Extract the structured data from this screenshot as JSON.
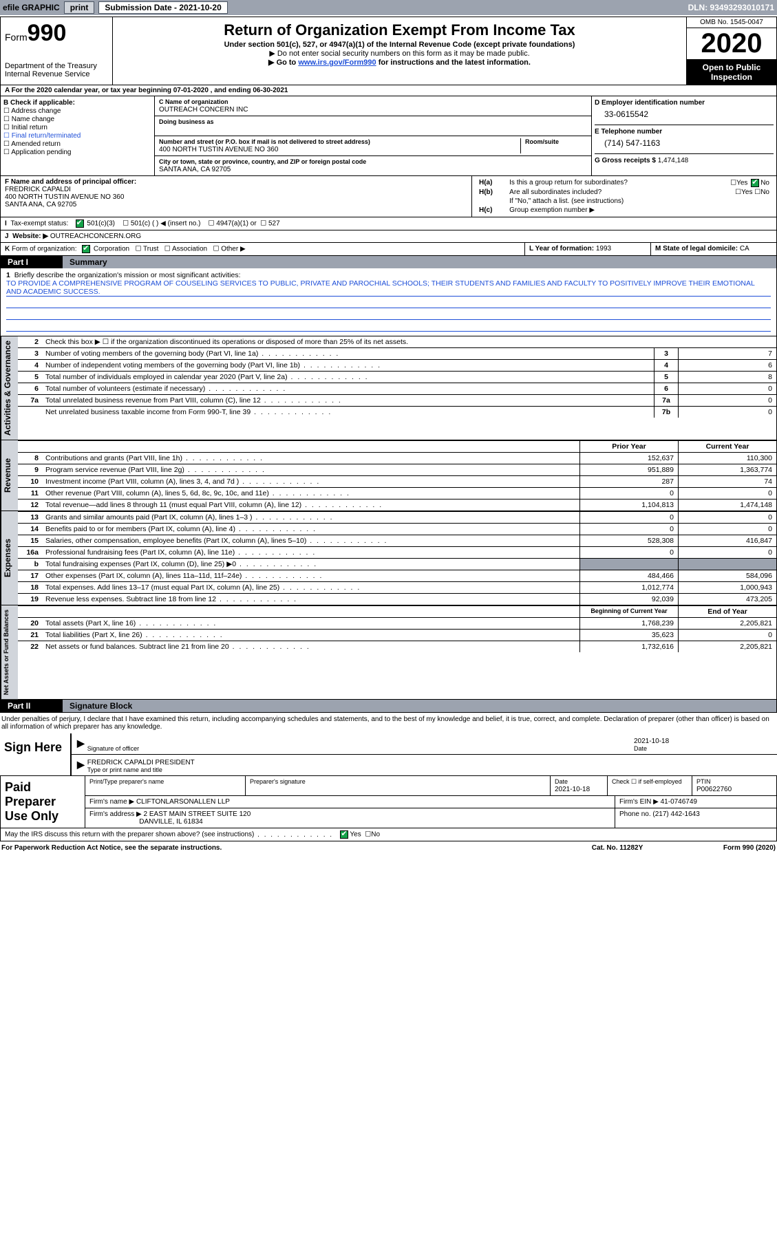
{
  "topbar": {
    "efile": "efile GRAPHIC",
    "print": "print",
    "submission": "Submission Date - 2021-10-20",
    "dln": "DLN: 93493293010171"
  },
  "header": {
    "form_word": "Form",
    "form_num": "990",
    "dept": "Department of the Treasury\nInternal Revenue Service",
    "title": "Return of Organization Exempt From Income Tax",
    "sub1": "Under section 501(c), 527, or 4947(a)(1) of the Internal Revenue Code (except private foundations)",
    "sub2": "▶ Do not enter social security numbers on this form as it may be made public.",
    "sub3_pre": "▶ Go to ",
    "sub3_link": "www.irs.gov/Form990",
    "sub3_post": " for instructions and the latest information.",
    "omb": "OMB No. 1545-0047",
    "year": "2020",
    "open": "Open to Public Inspection"
  },
  "period": "For the 2020 calendar year, or tax year beginning 07-01-2020    , and ending 06-30-2021",
  "B": {
    "label": "B Check if applicable:",
    "items": [
      "Address change",
      "Name change",
      "Initial return",
      "Final return/terminated",
      "Amended return",
      "Application pending"
    ]
  },
  "C": {
    "name_lbl": "C Name of organization",
    "name": "OUTREACH CONCERN INC",
    "dba_lbl": "Doing business as",
    "dba": "",
    "addr_lbl": "Number and street (or P.O. box if mail is not delivered to street address)",
    "room_lbl": "Room/suite",
    "addr": "400 NORTH TUSTIN AVENUE NO 360",
    "city_lbl": "City or town, state or province, country, and ZIP or foreign postal code",
    "city": "SANTA ANA, CA  92705"
  },
  "D": {
    "lbl": "D Employer identification number",
    "val": "33-0615542"
  },
  "E": {
    "lbl": "E Telephone number",
    "val": "(714) 547-1163"
  },
  "G": {
    "lbl": "G Gross receipts $",
    "val": "1,474,148"
  },
  "F": {
    "lbl": "F  Name and address of principal officer:",
    "name": "FREDRICK CAPALDI",
    "addr1": "400 NORTH TUSTIN AVENUE NO 360",
    "addr2": "SANTA ANA, CA  92705"
  },
  "H": {
    "a": "Is this a group return for subordinates?",
    "b": "Are all subordinates included?",
    "b_note": "If \"No,\" attach a list. (see instructions)",
    "c": "Group exemption number ▶",
    "yes": "Yes",
    "no": "No"
  },
  "I": {
    "lbl": "Tax-exempt status:",
    "c3": "501(c)(3)",
    "c": "501(c) (  ) ◀ (insert no.)",
    "a1": "4947(a)(1) or",
    "s527": "527"
  },
  "J": {
    "lbl": "Website: ▶",
    "val": "OUTREACHCONCERN.ORG"
  },
  "K": {
    "lbl": "Form of organization:",
    "corp": "Corporation",
    "trust": "Trust",
    "assoc": "Association",
    "other": "Other ▶"
  },
  "L": {
    "lbl": "L Year of formation:",
    "val": "1993"
  },
  "M": {
    "lbl": "M State of legal domicile:",
    "val": "CA"
  },
  "parts": {
    "p1": "Part I",
    "p1t": "Summary",
    "p2": "Part II",
    "p2t": "Signature Block"
  },
  "summary": {
    "l1": "Briefly describe the organization's mission or most significant activities:",
    "mission": "TO PROVIDE A COMPREHENSIVE PROGRAM OF COUSELING SERVICES TO PUBLIC, PRIVATE AND PAROCHIAL SCHOOLS; THEIR STUDENTS AND FAMILIES AND FACULTY TO POSITIVELY IMPROVE THEIR EMOTIONAL AND ACADEMIC SUCCESS.",
    "l2": "Check this box ▶ ☐  if the organization discontinued its operations or disposed of more than 25% of its net assets.",
    "rows_gov": [
      {
        "n": "3",
        "d": "Number of voting members of the governing body (Part VI, line 1a)",
        "box": "3",
        "v": "7"
      },
      {
        "n": "4",
        "d": "Number of independent voting members of the governing body (Part VI, line 1b)",
        "box": "4",
        "v": "6"
      },
      {
        "n": "5",
        "d": "Total number of individuals employed in calendar year 2020 (Part V, line 2a)",
        "box": "5",
        "v": "8"
      },
      {
        "n": "6",
        "d": "Total number of volunteers (estimate if necessary)",
        "box": "6",
        "v": "0"
      },
      {
        "n": "7a",
        "d": "Total unrelated business revenue from Part VIII, column (C), line 12",
        "box": "7a",
        "v": "0"
      },
      {
        "n": "",
        "d": "Net unrelated business taxable income from Form 990-T, line 39",
        "box": "7b",
        "v": "0"
      }
    ],
    "col_prior": "Prior Year",
    "col_curr": "Current Year",
    "rev": [
      {
        "n": "8",
        "d": "Contributions and grants (Part VIII, line 1h)",
        "p": "152,637",
        "c": "110,300"
      },
      {
        "n": "9",
        "d": "Program service revenue (Part VIII, line 2g)",
        "p": "951,889",
        "c": "1,363,774"
      },
      {
        "n": "10",
        "d": "Investment income (Part VIII, column (A), lines 3, 4, and 7d )",
        "p": "287",
        "c": "74"
      },
      {
        "n": "11",
        "d": "Other revenue (Part VIII, column (A), lines 5, 6d, 8c, 9c, 10c, and 11e)",
        "p": "0",
        "c": "0"
      },
      {
        "n": "12",
        "d": "Total revenue—add lines 8 through 11 (must equal Part VIII, column (A), line 12)",
        "p": "1,104,813",
        "c": "1,474,148"
      }
    ],
    "exp": [
      {
        "n": "13",
        "d": "Grants and similar amounts paid (Part IX, column (A), lines 1–3 )",
        "p": "0",
        "c": "0"
      },
      {
        "n": "14",
        "d": "Benefits paid to or for members (Part IX, column (A), line 4)",
        "p": "0",
        "c": "0"
      },
      {
        "n": "15",
        "d": "Salaries, other compensation, employee benefits (Part IX, column (A), lines 5–10)",
        "p": "528,308",
        "c": "416,847"
      },
      {
        "n": "16a",
        "d": "Professional fundraising fees (Part IX, column (A), line 11e)",
        "p": "0",
        "c": "0"
      },
      {
        "n": "b",
        "d": "Total fundraising expenses (Part IX, column (D), line 25) ▶0",
        "p": "",
        "c": "",
        "grey": true
      },
      {
        "n": "17",
        "d": "Other expenses (Part IX, column (A), lines 11a–11d, 11f–24e)",
        "p": "484,466",
        "c": "584,096"
      },
      {
        "n": "18",
        "d": "Total expenses. Add lines 13–17 (must equal Part IX, column (A), line 25)",
        "p": "1,012,774",
        "c": "1,000,943"
      },
      {
        "n": "19",
        "d": "Revenue less expenses. Subtract line 18 from line 12",
        "p": "92,039",
        "c": "473,205"
      }
    ],
    "col_beg": "Beginning of Current Year",
    "col_end": "End of Year",
    "net": [
      {
        "n": "20",
        "d": "Total assets (Part X, line 16)",
        "p": "1,768,239",
        "c": "2,205,821"
      },
      {
        "n": "21",
        "d": "Total liabilities (Part X, line 26)",
        "p": "35,623",
        "c": "0"
      },
      {
        "n": "22",
        "d": "Net assets or fund balances. Subtract line 21 from line 20",
        "p": "1,732,616",
        "c": "2,205,821"
      }
    ],
    "vlabels": {
      "gov": "Activities & Governance",
      "rev": "Revenue",
      "exp": "Expenses",
      "net": "Net Assets or Fund Balances"
    }
  },
  "penalty": "Under penalties of perjury, I declare that I have examined this return, including accompanying schedules and statements, and to the best of my knowledge and belief, it is true, correct, and complete. Declaration of preparer (other than officer) is based on all information of which preparer has any knowledge.",
  "sign": {
    "here": "Sign Here",
    "sig_officer": "Signature of officer",
    "date": "Date",
    "date_v": "2021-10-18",
    "name": "FREDRICK CAPALDI PRESIDENT",
    "type": "Type or print name and title"
  },
  "prep": {
    "left": "Paid Preparer Use Only",
    "r1": {
      "a": "Print/Type preparer's name",
      "b": "Preparer's signature",
      "c": "Date",
      "cv": "2021-10-18",
      "d": "Check ☐ if self-employed",
      "e": "PTIN",
      "ev": "P00622760"
    },
    "r2": {
      "a": "Firm's name    ▶",
      "av": "CLIFTONLARSONALLEN LLP",
      "b": "Firm's EIN ▶",
      "bv": "41-0746749"
    },
    "r3": {
      "a": "Firm's address ▶",
      "av": "2 EAST MAIN STREET SUITE 120",
      "av2": "DANVILLE, IL  61834",
      "b": "Phone no.",
      "bv": "(217) 442-1643"
    }
  },
  "discuss": {
    "q": "May the IRS discuss this return with the preparer shown above? (see instructions)",
    "yes": "Yes",
    "no": "No"
  },
  "footer": {
    "a": "For Paperwork Reduction Act Notice, see the separate instructions.",
    "b": "Cat. No. 11282Y",
    "c": "Form 990 (2020)"
  }
}
